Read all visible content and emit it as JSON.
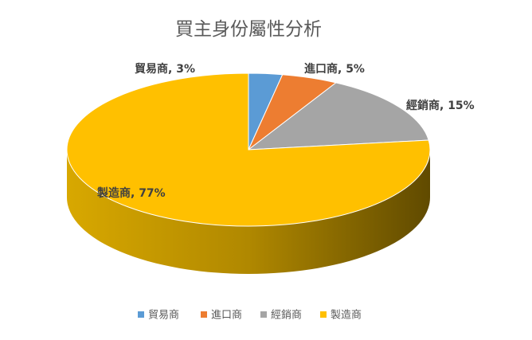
{
  "chart_data": {
    "type": "pie3d",
    "title": "買主身份屬性分析",
    "categories": [
      "貿易商",
      "進口商",
      "經銷商",
      "製造商"
    ],
    "values": [
      3,
      5,
      15,
      77
    ],
    "value_labels": [
      "貿易商, 3%",
      "進口商, 5%",
      "經銷商, 15%",
      "製造商, 77%"
    ],
    "colors": [
      "#5b9bd5",
      "#ed7d31",
      "#a5a5a5",
      "#ffc000"
    ],
    "legend": "bottom"
  }
}
